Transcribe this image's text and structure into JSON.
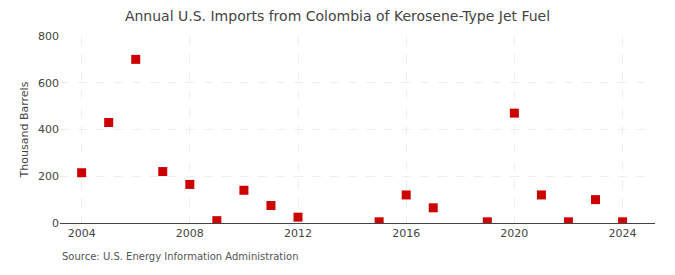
{
  "chart_data": {
    "type": "scatter",
    "title": "Annual U.S. Imports from Colombia of Kerosene-Type Jet Fuel",
    "ylabel": "Thousand Barrels",
    "annotations": [
      "Source: U.S. Energy Information Administration"
    ],
    "x": [
      2004,
      2005,
      2006,
      2007,
      2008,
      2009,
      2010,
      2011,
      2012,
      2015,
      2016,
      2017,
      2019,
      2020,
      2021,
      2022,
      2023,
      2024
    ],
    "values": [
      215,
      430,
      700,
      220,
      165,
      10,
      140,
      75,
      25,
      5,
      120,
      65,
      5,
      470,
      120,
      5,
      100,
      5
    ],
    "color": "#cc0000",
    "marker": "square",
    "xlim": [
      2003.2,
      2025.2
    ],
    "xticks": [
      2004,
      2008,
      2012,
      2016,
      2020,
      2024
    ],
    "ylim": [
      0,
      800
    ],
    "yticks": [
      0,
      200,
      400,
      600,
      800
    ],
    "grid": true
  }
}
